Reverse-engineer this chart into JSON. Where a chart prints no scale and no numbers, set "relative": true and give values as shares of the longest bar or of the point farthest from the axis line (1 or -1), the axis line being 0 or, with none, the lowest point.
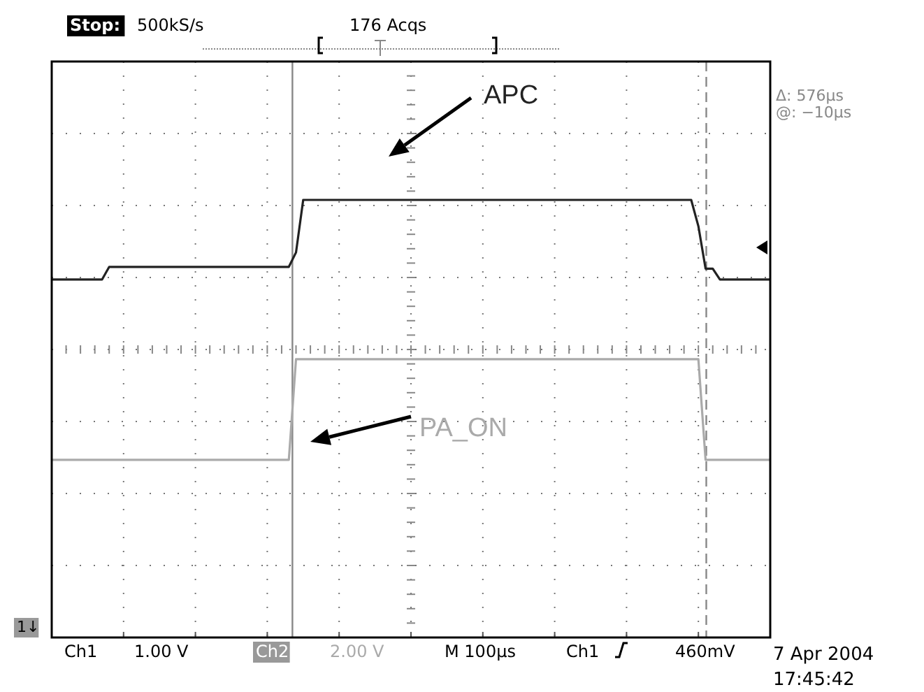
{
  "chart_data": {
    "type": "line",
    "relative": true,
    "categories": [
      null,
      null,
      null,
      null,
      null,
      null,
      null,
      null,
      null,
      null,
      null,
      null,
      null,
      null,
      null,
      null,
      null,
      null,
      null,
      null,
      null,
      null,
      null,
      null,
      null,
      null,
      null,
      null,
      null,
      null,
      null,
      null,
      null,
      null,
      null,
      null,
      null,
      null,
      null,
      null,
      null,
      null,
      null,
      null,
      null,
      null,
      null,
      null,
      null,
      null,
      null,
      null,
      null,
      null,
      null,
      null,
      null,
      null,
      null,
      null,
      null,
      null,
      null,
      null,
      null,
      null,
      null,
      null,
      null,
      null,
      null,
      null,
      null,
      null,
      null,
      null,
      null,
      null,
      null,
      null,
      null,
      null,
      null,
      null,
      null,
      null,
      null,
      null,
      null,
      null,
      null,
      null,
      null,
      null,
      null,
      null,
      null,
      null,
      null,
      null,
      null
    ],
    "grid": true,
    "marker": "none",
    "line_style": "solid",
    "series": [
      {
        "name": "APC",
        "color": "#222222",
        "values": [
          0.818,
          0.818,
          0.818,
          0.818,
          0.818,
          0.818,
          0.818,
          0.818,
          0.847,
          0.847,
          0.847,
          0.847,
          0.847,
          0.847,
          0.847,
          0.847,
          0.847,
          0.847,
          0.847,
          0.847,
          0.847,
          0.847,
          0.847,
          0.847,
          0.847,
          0.847,
          0.847,
          0.847,
          0.847,
          0.847,
          0.847,
          0.847,
          0.847,
          0.847,
          0.88,
          1,
          1,
          1,
          1,
          1,
          1,
          1,
          1,
          1,
          1,
          1,
          1,
          1,
          1,
          1,
          1,
          1,
          1,
          1,
          1,
          1,
          1,
          1,
          1,
          1,
          1,
          1,
          1,
          1,
          1,
          1,
          1,
          1,
          1,
          1,
          1,
          1,
          1,
          1,
          1,
          1,
          1,
          1,
          1,
          1,
          1,
          1,
          1,
          1,
          1,
          1,
          1,
          1,
          1,
          1,
          0.94,
          0.843,
          0.843,
          0.818,
          0.818,
          0.818,
          0.818,
          0.818,
          0.818,
          0.818,
          0.818
        ]
      },
      {
        "name": "PA_ON",
        "color": "#aaaaaa",
        "values": [
          0.406,
          0.406,
          0.406,
          0.406,
          0.406,
          0.406,
          0.406,
          0.406,
          0.406,
          0.406,
          0.406,
          0.406,
          0.406,
          0.406,
          0.406,
          0.406,
          0.406,
          0.406,
          0.406,
          0.406,
          0.406,
          0.406,
          0.406,
          0.406,
          0.406,
          0.406,
          0.406,
          0.406,
          0.406,
          0.406,
          0.406,
          0.406,
          0.406,
          0.406,
          0.636,
          0.636,
          0.636,
          0.636,
          0.636,
          0.636,
          0.636,
          0.636,
          0.636,
          0.636,
          0.636,
          0.636,
          0.636,
          0.636,
          0.636,
          0.636,
          0.636,
          0.636,
          0.636,
          0.636,
          0.636,
          0.636,
          0.636,
          0.636,
          0.636,
          0.636,
          0.636,
          0.636,
          0.636,
          0.636,
          0.636,
          0.636,
          0.636,
          0.636,
          0.636,
          0.636,
          0.636,
          0.636,
          0.636,
          0.636,
          0.636,
          0.636,
          0.636,
          0.636,
          0.636,
          0.636,
          0.636,
          0.636,
          0.636,
          0.636,
          0.636,
          0.636,
          0.636,
          0.636,
          0.636,
          0.636,
          0.636,
          0.406,
          0.406,
          0.406,
          0.406,
          0.406,
          0.406,
          0.406,
          0.406,
          0.406,
          0.406
        ]
      }
    ],
    "annotations": [
      "Stop:",
      "500kS/s",
      "176 Acqs",
      "Δ: 576µs",
      "@: −10µs",
      "1↓",
      "Ch1",
      "1.00 V",
      "Ch2",
      "2.00 V",
      "M 100µs",
      "Ch1",
      "460mV",
      "7 Apr 2004",
      "17:45:42"
    ]
  }
}
